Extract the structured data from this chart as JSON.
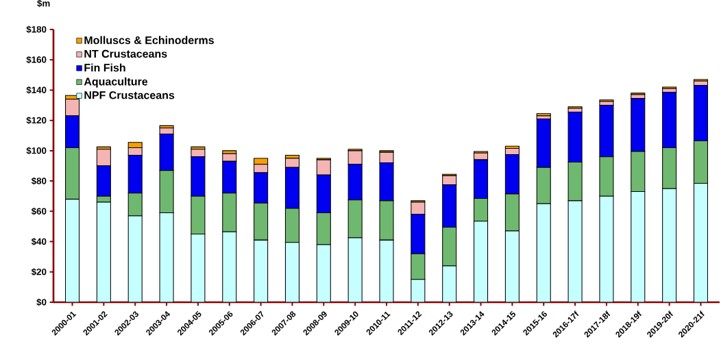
{
  "chart_data": {
    "type": "bar",
    "stacked": true,
    "ylabel": "$m",
    "categories": [
      "2000-01",
      "2001-02",
      "2002-03",
      "2003-04",
      "2004-05",
      "2005-06",
      "2006-07",
      "2007-08",
      "2008-09",
      "2009-10",
      "2010-11",
      "2011-12",
      "2012-13",
      "2013-14",
      "2014-15",
      "2015-16",
      "2016-17f",
      "2017-18f",
      "2018-19f",
      "2019-20f",
      "2020-21f"
    ],
    "series": [
      {
        "name": "NPF Crustaceans",
        "color": "#c6ffff",
        "values": [
          68,
          66,
          57,
          59,
          45,
          46.5,
          41,
          39.5,
          38,
          42.5,
          41,
          15,
          24,
          53.5,
          47,
          65,
          67,
          70,
          73,
          75,
          78.5
        ]
      },
      {
        "name": "Aquaculture",
        "color": "#6fb86f",
        "values": [
          34,
          4,
          15,
          28,
          25,
          25.5,
          24.5,
          22.5,
          21,
          25,
          26,
          17,
          25.5,
          15,
          24.5,
          24,
          25.5,
          26,
          26.5,
          27,
          28
        ]
      },
      {
        "name": "Fin Fish",
        "color": "#0000f0",
        "values": [
          21,
          20,
          25,
          24,
          26,
          21,
          20,
          27,
          25,
          23.5,
          25,
          26,
          28,
          25.5,
          26,
          32,
          33,
          34,
          35,
          36.5,
          36.5
        ]
      },
      {
        "name": "NT Crustaceans",
        "color": "#f4b4b4",
        "values": [
          11,
          11,
          5,
          4,
          5,
          5,
          5.5,
          6,
          10,
          9,
          7,
          8,
          6,
          4.5,
          4,
          2,
          2.5,
          2.5,
          2.5,
          2.5,
          3
        ]
      },
      {
        "name": "Molluscs & Echinoderms",
        "color": "#f5a000",
        "values": [
          2.5,
          1.5,
          3.5,
          1.5,
          1.5,
          2,
          4,
          2,
          1,
          1,
          1,
          1,
          1,
          1,
          1.5,
          1.5,
          1,
          1,
          1,
          1,
          1
        ]
      }
    ],
    "ylim": [
      0,
      180
    ],
    "yticks": [
      {
        "value": 0,
        "label": "$0"
      },
      {
        "value": 20,
        "label": "$20"
      },
      {
        "value": 40,
        "label": "$40"
      },
      {
        "value": 60,
        "label": "$60"
      },
      {
        "value": 80,
        "label": "$80"
      },
      {
        "value": 100,
        "label": "$100"
      },
      {
        "value": 120,
        "label": "$120"
      },
      {
        "value": 140,
        "label": "$140"
      },
      {
        "value": 160,
        "label": "$160"
      },
      {
        "value": 180,
        "label": "$180"
      }
    ],
    "legend": "top left",
    "grid": false
  }
}
